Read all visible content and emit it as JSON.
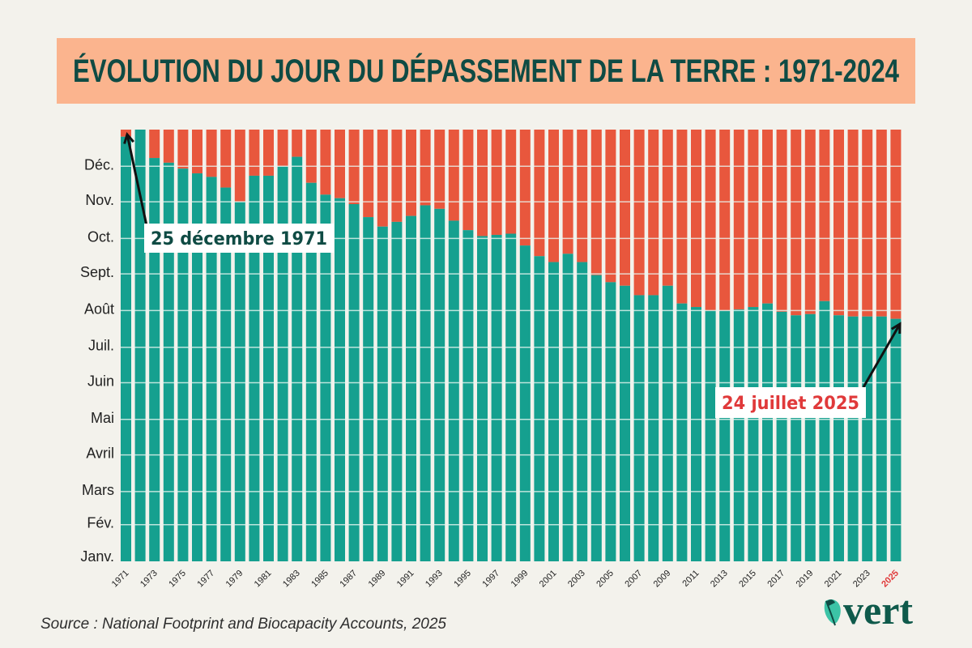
{
  "chart_data": {
    "type": "bar",
    "stacked": true,
    "title": "ÉVOLUTION DU JOUR DU DÉPASSEMENT DE LA TERRE : 1971-2024",
    "y_axis": {
      "type": "date-of-year",
      "range": [
        "01-01",
        "12-31"
      ],
      "tick_labels": [
        "Janv.",
        "Fév.",
        "Mars",
        "Avril",
        "Mai",
        "Juin",
        "Juil.",
        "Août",
        "Sept.",
        "Oct.",
        "Nov.",
        "Déc."
      ]
    },
    "x_tick_labels": [
      "1971",
      "1973",
      "1975",
      "1977",
      "1979",
      "1981",
      "1983",
      "1985",
      "1987",
      "1989",
      "1991",
      "1993",
      "1995",
      "1997",
      "1999",
      "2001",
      "2003",
      "2005",
      "2007",
      "2009",
      "2011",
      "2013",
      "2015",
      "2017",
      "2019",
      "2021",
      "2023",
      "2025"
    ],
    "highlight_tick": "2025",
    "grid": true,
    "colors": {
      "overshoot_day": "#15a08f",
      "remainder": "#e8573d",
      "highlight": "#e0393a"
    },
    "years": [
      1971,
      1972,
      1973,
      1974,
      1975,
      1976,
      1977,
      1978,
      1979,
      1980,
      1981,
      1982,
      1983,
      1984,
      1985,
      1986,
      1987,
      1988,
      1989,
      1990,
      1991,
      1992,
      1993,
      1994,
      1995,
      1996,
      1997,
      1998,
      1999,
      2000,
      2001,
      2002,
      2003,
      2004,
      2005,
      2006,
      2007,
      2008,
      2009,
      2010,
      2011,
      2012,
      2013,
      2014,
      2015,
      2016,
      2017,
      2018,
      2019,
      2020,
      2021,
      2022,
      2023,
      2024,
      2025
    ],
    "overshoot_dates": [
      "12-25",
      "12-31",
      "12-07",
      "12-03",
      "11-28",
      "11-24",
      "11-21",
      "11-12",
      "10-31",
      "11-22",
      "11-22",
      "11-30",
      "12-08",
      "11-16",
      "11-06",
      "11-03",
      "10-29",
      "10-18",
      "10-10",
      "10-14",
      "10-19",
      "10-28",
      "10-25",
      "10-15",
      "10-07",
      "10-02",
      "10-03",
      "10-04",
      "09-24",
      "09-15",
      "09-10",
      "09-17",
      "09-10",
      "08-30",
      "08-24",
      "08-21",
      "08-13",
      "08-13",
      "08-21",
      "08-06",
      "08-03",
      "07-31",
      "07-31",
      "08-01",
      "08-03",
      "08-06",
      "07-30",
      "07-27",
      "07-28",
      "08-08",
      "07-27",
      "07-26",
      "07-26",
      "07-26",
      "07-24"
    ],
    "annotations": [
      {
        "text": "25 décembre 1971",
        "target_year": 1971
      },
      {
        "text": "24 juillet 2025",
        "target_year": 2025
      }
    ]
  },
  "source": "Source : National Footprint and Biocapacity Accounts, 2025",
  "logo": {
    "text": "vert",
    "icon": "leaf-icon"
  }
}
